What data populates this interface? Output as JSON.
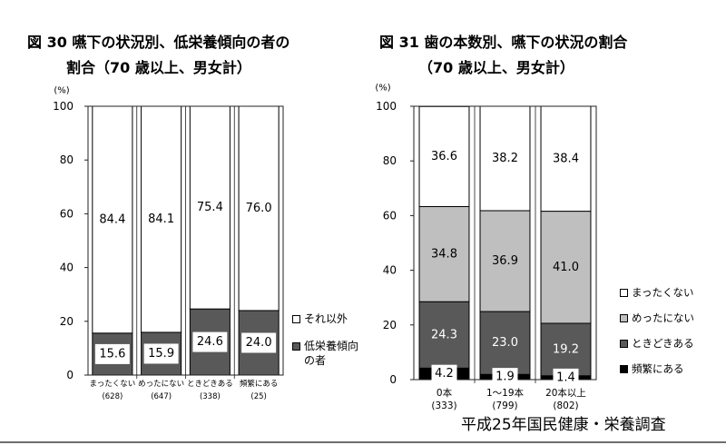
{
  "chart_data": [
    {
      "type": "bar",
      "stacked": true,
      "title": "図 30 嚥下の状況別、低栄養傾向の者の\n割合（70 歳以上、男女計）",
      "ylabel": "(%)",
      "ylim": [
        0,
        100
      ],
      "yticks": [
        0,
        20,
        40,
        60,
        80,
        100
      ],
      "categories": [
        "まったくない",
        "めったにない",
        "ときどきある",
        "頻繁にある"
      ],
      "category_counts": [
        "(628)",
        "(647)",
        "(338)",
        "(25)"
      ],
      "series": [
        {
          "name": "低栄養傾向の者",
          "values": [
            15.6,
            15.9,
            24.6,
            24.0
          ],
          "color": "#595959"
        },
        {
          "name": "それ以外",
          "values": [
            84.4,
            84.1,
            75.4,
            76.0
          ],
          "color": "#ffffff"
        }
      ],
      "grid": false,
      "legend": "right"
    },
    {
      "type": "bar",
      "stacked": true,
      "title": "図 31 歯の本数別、嚥下の状況の割合\n（70 歳以上、男女計）",
      "ylabel": "(%)",
      "ylim": [
        0,
        100
      ],
      "yticks": [
        0,
        20,
        40,
        60,
        80,
        100
      ],
      "categories": [
        "0本",
        "1～19本",
        "20本以上"
      ],
      "category_counts": [
        "(333)",
        "(799)",
        "(802)"
      ],
      "series": [
        {
          "name": "頻繁にある",
          "values": [
            4.2,
            1.9,
            1.4
          ],
          "color": "#000000"
        },
        {
          "name": "ときどきある",
          "values": [
            24.3,
            23.0,
            19.2
          ],
          "color": "#595959"
        },
        {
          "name": "めったにない",
          "values": [
            34.8,
            36.9,
            41.0
          ],
          "color": "#bfbfbf"
        },
        {
          "name": "まったくない",
          "values": [
            36.6,
            38.2,
            38.4
          ],
          "color": "#ffffff"
        }
      ],
      "grid": false,
      "legend": "right"
    }
  ],
  "footer": {
    "source": "平成25年国民健康・栄養調査"
  }
}
